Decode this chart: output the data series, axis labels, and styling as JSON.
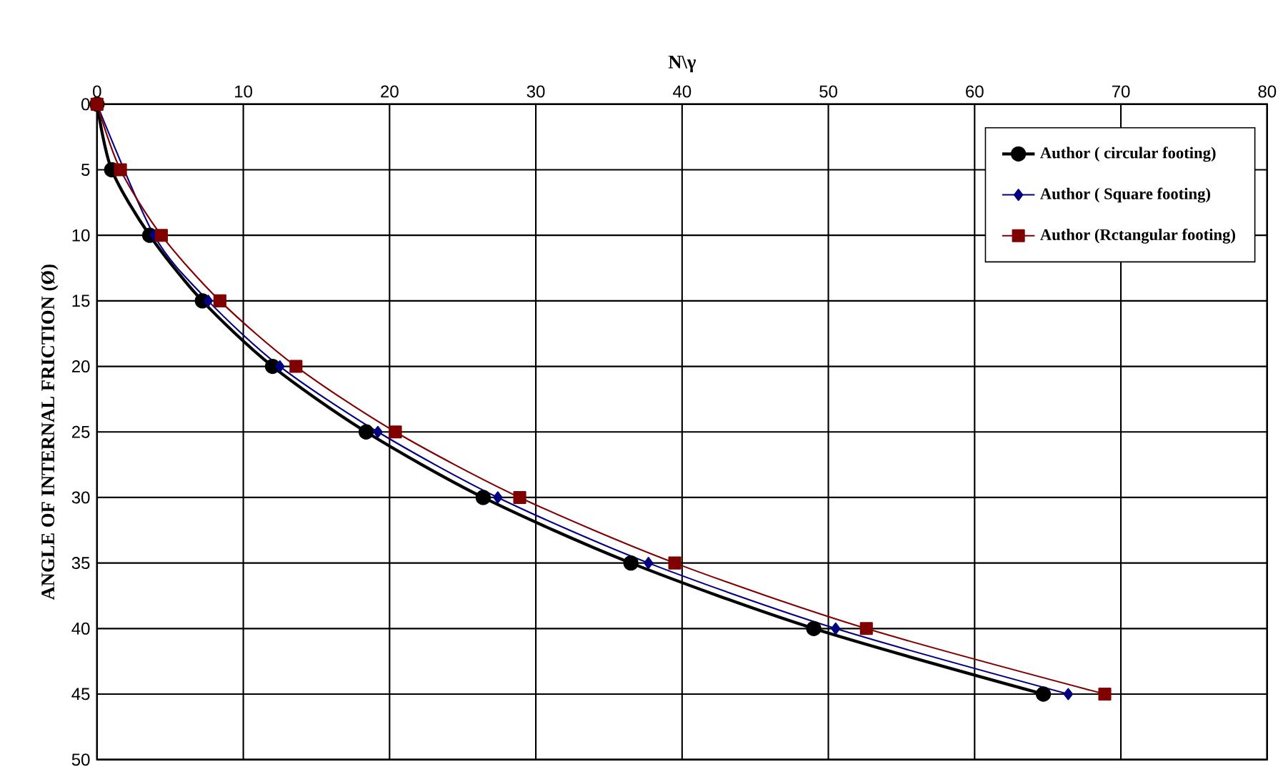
{
  "chart_data": {
    "type": "line",
    "xlabel": "N\\γ",
    "ylabel": "ANGLE OF INTERNAL FRICTION (Ø)",
    "xlim": [
      0,
      80
    ],
    "xticks": [
      0,
      10,
      20,
      30,
      40,
      50,
      60,
      70,
      80
    ],
    "ylim": [
      50,
      0
    ],
    "yticks": [
      0,
      5,
      10,
      15,
      20,
      25,
      30,
      35,
      40,
      45,
      50
    ],
    "grid": true,
    "legend": "top right",
    "line_style": "solid",
    "series": [
      {
        "name": "Author ( circular footing)",
        "color": "#000000",
        "marker": "circle",
        "x": [
          0,
          1.0,
          3.6,
          7.2,
          12.0,
          18.4,
          26.4,
          36.5,
          49.0,
          64.7
        ],
        "values": [
          0,
          5,
          10,
          15,
          20,
          25,
          30,
          35,
          40,
          45
        ]
      },
      {
        "name": "Author ( Square footing)",
        "color": "#000080",
        "marker": "diamond",
        "x": [
          0,
          1.2,
          3.9,
          7.6,
          12.5,
          19.2,
          27.4,
          37.7,
          50.5,
          66.4
        ],
        "values": [
          0,
          null,
          10,
          15,
          20,
          25,
          30,
          35,
          40,
          45
        ]
      },
      {
        "name": "Author (Rctangular footing)",
        "color": "#800000",
        "marker": "square",
        "x": [
          0,
          1.6,
          4.4,
          8.4,
          13.6,
          20.4,
          28.9,
          39.5,
          52.6,
          68.9
        ],
        "values": [
          0,
          5,
          10,
          15,
          20,
          25,
          30,
          35,
          40,
          45
        ]
      }
    ]
  }
}
